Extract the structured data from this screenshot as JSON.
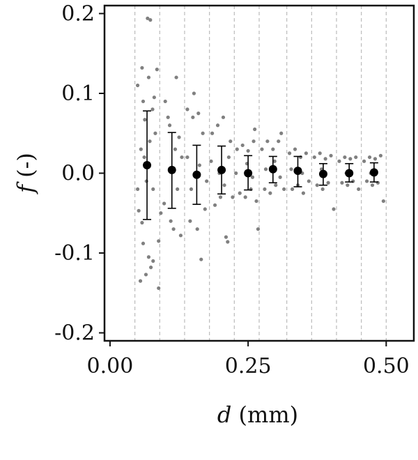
{
  "chart_data": {
    "type": "scatter",
    "title": "",
    "xlabel": {
      "var": "d",
      "unit": " (mm)"
    },
    "ylabel": {
      "var": "f",
      "unit": " (-)"
    },
    "xlim": [
      -0.01,
      0.55
    ],
    "ylim": [
      -0.21,
      0.21
    ],
    "xticks": [
      0.0,
      0.25,
      0.5
    ],
    "xtick_labels": [
      "0.00",
      "0.25",
      "0.50"
    ],
    "yticks": [
      -0.2,
      -0.1,
      0.0,
      0.1,
      0.2
    ],
    "ytick_labels": [
      "-0.2",
      "-0.1",
      "0.0",
      "0.1",
      "0.2"
    ],
    "grid": "vertical dashed lines at bin edges",
    "bin_edges": [
      0.045,
      0.09,
      0.135,
      0.18,
      0.225,
      0.27,
      0.32,
      0.365,
      0.41,
      0.455,
      0.5
    ],
    "colors": {
      "scatter": "#808080",
      "mean": "#000000",
      "grid": "#bbbbbb",
      "axis": "#111111"
    },
    "series": [
      {
        "marker": "mean-with-errorbar",
        "points": [
          {
            "x": 0.067,
            "y": 0.01,
            "yerr_low": -0.058,
            "yerr_high": 0.078
          },
          {
            "x": 0.112,
            "y": 0.004,
            "yerr_low": -0.044,
            "yerr_high": 0.051
          },
          {
            "x": 0.157,
            "y": -0.002,
            "yerr_low": -0.039,
            "yerr_high": 0.035
          },
          {
            "x": 0.202,
            "y": 0.004,
            "yerr_low": -0.026,
            "yerr_high": 0.034
          },
          {
            "x": 0.25,
            "y": 0.0,
            "yerr_low": -0.021,
            "yerr_high": 0.022
          },
          {
            "x": 0.295,
            "y": 0.005,
            "yerr_low": -0.012,
            "yerr_high": 0.021
          },
          {
            "x": 0.34,
            "y": 0.003,
            "yerr_low": -0.017,
            "yerr_high": 0.021
          },
          {
            "x": 0.386,
            "y": -0.001,
            "yerr_low": -0.015,
            "yerr_high": 0.012
          },
          {
            "x": 0.433,
            "y": 0.0,
            "yerr_low": -0.011,
            "yerr_high": 0.012
          },
          {
            "x": 0.478,
            "y": 0.001,
            "yerr_low": -0.011,
            "yerr_high": 0.013
          }
        ]
      },
      {
        "marker": "scatter",
        "points": [
          [
            0.05,
            0.11
          ],
          [
            0.058,
            0.132
          ],
          [
            0.06,
            0.09
          ],
          [
            0.063,
            0.067
          ],
          [
            0.07,
            0.12
          ],
          [
            0.068,
            0.194
          ],
          [
            0.073,
            0.192
          ],
          [
            0.052,
            -0.047
          ],
          [
            0.058,
            -0.062
          ],
          [
            0.06,
            -0.088
          ],
          [
            0.07,
            -0.105
          ],
          [
            0.074,
            -0.118
          ],
          [
            0.078,
            -0.11
          ],
          [
            0.065,
            -0.127
          ],
          [
            0.055,
            -0.135
          ],
          [
            0.088,
            -0.144
          ],
          [
            0.085,
            0.13
          ],
          [
            0.08,
            0.095
          ],
          [
            0.077,
            0.08
          ],
          [
            0.088,
            -0.085
          ],
          [
            0.092,
            -0.05
          ],
          [
            0.056,
            0.03
          ],
          [
            0.062,
            0.02
          ],
          [
            0.066,
            -0.01
          ],
          [
            0.072,
            0.04
          ],
          [
            0.078,
            -0.02
          ],
          [
            0.082,
            0.05
          ],
          [
            0.05,
            -0.02
          ],
          [
            0.1,
            0.09
          ],
          [
            0.105,
            0.07
          ],
          [
            0.11,
            -0.06
          ],
          [
            0.115,
            -0.07
          ],
          [
            0.12,
            0.12
          ],
          [
            0.125,
            0.045
          ],
          [
            0.128,
            -0.078
          ],
          [
            0.108,
            0.06
          ],
          [
            0.098,
            -0.038
          ],
          [
            0.118,
            0.03
          ],
          [
            0.122,
            -0.02
          ],
          [
            0.13,
            0.02
          ],
          [
            0.14,
            0.08
          ],
          [
            0.145,
            -0.06
          ],
          [
            0.15,
            0.07
          ],
          [
            0.152,
            0.1
          ],
          [
            0.158,
            -0.07
          ],
          [
            0.16,
            0.075
          ],
          [
            0.165,
            -0.108
          ],
          [
            0.168,
            0.05
          ],
          [
            0.172,
            -0.045
          ],
          [
            0.14,
            0.02
          ],
          [
            0.147,
            -0.02
          ],
          [
            0.162,
            0.01
          ],
          [
            0.175,
            -0.01
          ],
          [
            0.185,
            0.05
          ],
          [
            0.19,
            -0.04
          ],
          [
            0.195,
            0.06
          ],
          [
            0.2,
            -0.03
          ],
          [
            0.205,
            0.07
          ],
          [
            0.21,
            -0.08
          ],
          [
            0.213,
            -0.086
          ],
          [
            0.218,
            0.04
          ],
          [
            0.222,
            -0.03
          ],
          [
            0.183,
            0.015
          ],
          [
            0.198,
            0.0
          ],
          [
            0.207,
            -0.015
          ],
          [
            0.215,
            0.02
          ],
          [
            0.23,
            0.03
          ],
          [
            0.235,
            -0.025
          ],
          [
            0.24,
            0.035
          ],
          [
            0.245,
            -0.03
          ],
          [
            0.25,
            0.028
          ],
          [
            0.255,
            -0.02
          ],
          [
            0.26,
            0.04
          ],
          [
            0.265,
            -0.035
          ],
          [
            0.268,
            -0.07
          ],
          [
            0.262,
            0.055
          ],
          [
            0.228,
            0.0
          ],
          [
            0.248,
            0.012
          ],
          [
            0.258,
            -0.005
          ],
          [
            0.275,
            0.03
          ],
          [
            0.28,
            -0.02
          ],
          [
            0.285,
            0.04
          ],
          [
            0.29,
            -0.025
          ],
          [
            0.295,
            0.03
          ],
          [
            0.3,
            -0.015
          ],
          [
            0.305,
            0.04
          ],
          [
            0.31,
            0.05
          ],
          [
            0.315,
            -0.02
          ],
          [
            0.282,
            0.005
          ],
          [
            0.298,
            0.015
          ],
          [
            0.308,
            -0.005
          ],
          [
            0.325,
            0.025
          ],
          [
            0.33,
            -0.02
          ],
          [
            0.335,
            0.03
          ],
          [
            0.34,
            -0.015
          ],
          [
            0.345,
            0.02
          ],
          [
            0.35,
            -0.025
          ],
          [
            0.355,
            0.025
          ],
          [
            0.36,
            -0.01
          ],
          [
            0.328,
            0.005
          ],
          [
            0.348,
            0.0
          ],
          [
            0.37,
            0.02
          ],
          [
            0.375,
            -0.015
          ],
          [
            0.38,
            0.025
          ],
          [
            0.385,
            -0.02
          ],
          [
            0.39,
            0.018
          ],
          [
            0.395,
            -0.012
          ],
          [
            0.4,
            0.022
          ],
          [
            0.405,
            -0.045
          ],
          [
            0.383,
            0.005
          ],
          [
            0.415,
            0.015
          ],
          [
            0.42,
            -0.012
          ],
          [
            0.425,
            0.02
          ],
          [
            0.43,
            -0.015
          ],
          [
            0.435,
            0.018
          ],
          [
            0.44,
            -0.01
          ],
          [
            0.445,
            0.02
          ],
          [
            0.45,
            -0.02
          ],
          [
            0.428,
            0.0
          ],
          [
            0.46,
            0.015
          ],
          [
            0.465,
            -0.01
          ],
          [
            0.47,
            0.02
          ],
          [
            0.475,
            -0.015
          ],
          [
            0.48,
            0.018
          ],
          [
            0.485,
            -0.012
          ],
          [
            0.49,
            0.022
          ],
          [
            0.495,
            -0.035
          ],
          [
            0.472,
            0.0
          ]
        ]
      }
    ]
  }
}
